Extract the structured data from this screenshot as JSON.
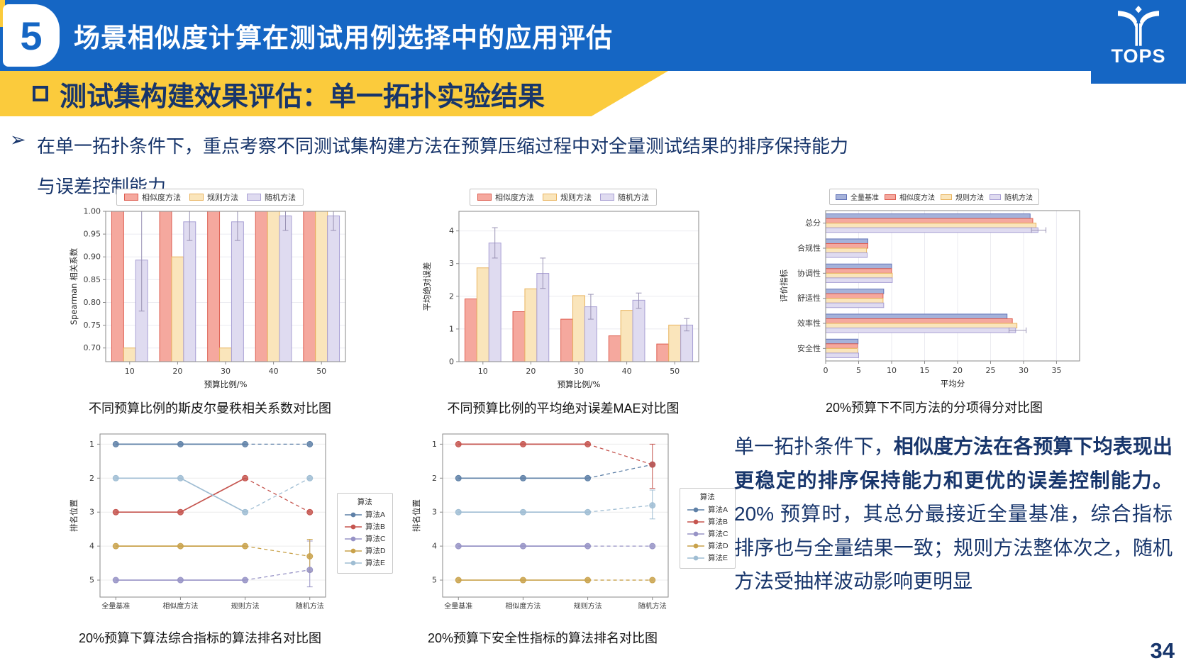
{
  "header": {
    "badge": "5",
    "title": "场景相似度计算在测试用例选择中的应用评估",
    "logo_text": "TOPS"
  },
  "subheader": {
    "text": "测试集构建效果评估：单一拓扑实验结果"
  },
  "intro": {
    "arrow": "➢",
    "line1": "在单一拓扑条件下，重点考察不同测试集构建方法在预算压缩过程中对全量测试结果的排序保持能力",
    "line2": "与误差控制能力"
  },
  "summary": {
    "prefix": "单一拓扑条件下，",
    "bold": "相似度方法在各预算下均表现出更稳定的排序保持能力和更优的误差控制能力。",
    "rest": "20% 预算时，其总分最接近全量基准，综合指标排序也与全量结果一致；规则方法整体次之，随机方法受抽样波动影响更明显"
  },
  "page_number": "34",
  "colors": {
    "header_blue": "#1566C4",
    "accent_yellow": "#FBCB3C",
    "navy_text": "#17356B",
    "bar_salmon_fill": "#F5A89E",
    "bar_salmon_edge": "#DE5E51",
    "bar_cream_fill": "#FAE5BB",
    "bar_cream_edge": "#E9B45F",
    "bar_lavender_fill": "#DFDBF0",
    "bar_lavender_edge": "#A89FD4",
    "bar_blue_fill": "#A5B2DA",
    "bar_blue_edge": "#6374B8",
    "line_algo_a": "#5E80A7",
    "line_algo_b": "#C5554F",
    "line_algo_c": "#9793C6",
    "line_algo_d": "#C9A24B",
    "line_algo_e": "#9FBDD3",
    "error_bar_gray": "#9a93b5"
  },
  "chart_data": [
    {
      "id": "spearman",
      "type": "bar",
      "caption": "不同预算比例的斯皮尔曼秩相关系数对比图",
      "xlabel": "预算比例/%",
      "ylabel": "Spearman 相关系数",
      "categories": [
        "10",
        "20",
        "30",
        "40",
        "50"
      ],
      "ylim": [
        0.67,
        1.0
      ],
      "yticks": [
        0.7,
        0.75,
        0.8,
        0.85,
        0.9,
        0.95,
        1.0
      ],
      "ydec": 2,
      "grid": true,
      "legend_position": "top",
      "series": [
        {
          "name": "相似度方法",
          "color": "salmon",
          "values": [
            1.0,
            1.0,
            1.0,
            1.0,
            1.0
          ]
        },
        {
          "name": "规则方法",
          "color": "cream",
          "values": [
            0.7,
            0.9,
            0.7,
            1.0,
            1.0
          ]
        },
        {
          "name": "随机方法",
          "color": "lavender",
          "values": [
            0.893,
            0.977,
            0.977,
            0.99,
            0.99
          ],
          "errors": [
            [
              0.781,
              1.0
            ],
            [
              0.936,
              1.0
            ],
            [
              0.936,
              1.0
            ],
            [
              0.958,
              1.0
            ],
            [
              0.958,
              1.0
            ]
          ]
        }
      ]
    },
    {
      "id": "mae",
      "type": "bar",
      "caption": "不同预算比例的平均绝对误差MAE对比图",
      "xlabel": "预算比例/%",
      "ylabel": "平均绝对误差",
      "categories": [
        "10",
        "20",
        "30",
        "40",
        "50"
      ],
      "ylim": [
        0,
        4.6
      ],
      "yticks": [
        0,
        1,
        2,
        3,
        4
      ],
      "ydec": 0,
      "grid": true,
      "legend_position": "top",
      "series": [
        {
          "name": "相似度方法",
          "color": "salmon",
          "values": [
            1.92,
            1.53,
            1.3,
            0.79,
            0.54
          ]
        },
        {
          "name": "规则方法",
          "color": "cream",
          "values": [
            2.87,
            2.23,
            2.02,
            1.57,
            1.12
          ]
        },
        {
          "name": "随机方法",
          "color": "lavender",
          "values": [
            3.63,
            2.7,
            1.68,
            1.88,
            1.12
          ],
          "errors": [
            [
              3.17,
              4.1
            ],
            [
              2.24,
              3.17
            ],
            [
              1.3,
              2.06
            ],
            [
              1.63,
              2.1
            ],
            [
              0.94,
              1.32
            ]
          ]
        }
      ]
    },
    {
      "id": "subscores",
      "type": "barh",
      "caption": "20%预算下不同方法的分项得分对比图",
      "xlabel": "平均分",
      "ylabel": "评价指标",
      "categories": [
        "总分",
        "合规性",
        "协调性",
        "舒适性",
        "效率性",
        "安全性"
      ],
      "xlim": [
        0,
        38.5
      ],
      "xticks": [
        0,
        5,
        10,
        15,
        20,
        25,
        30,
        35
      ],
      "xdec": 0,
      "grid": true,
      "legend_position": "top",
      "series": [
        {
          "name": "全量基准",
          "color": "blue",
          "values": [
            31.0,
            6.4,
            10.0,
            8.8,
            27.5,
            4.9
          ]
        },
        {
          "name": "相似度方法",
          "color": "salmon",
          "values": [
            31.4,
            6.4,
            10.0,
            8.7,
            28.3,
            4.8
          ]
        },
        {
          "name": "规则方法",
          "color": "cream",
          "values": [
            31.9,
            6.2,
            10.1,
            8.7,
            29.0,
            4.8
          ]
        },
        {
          "name": "随机方法",
          "color": "lavender",
          "values": [
            32.2,
            6.3,
            10.1,
            8.8,
            28.8,
            5.0
          ],
          "errors": [
            [
              31.2,
              33.4
            ],
            null,
            null,
            null,
            [
              27.8,
              30.4
            ],
            null
          ]
        }
      ]
    },
    {
      "id": "rank-overall",
      "type": "bump",
      "caption": "20%预算下算法综合指标的算法排名对比图",
      "ylabel": "排名位置",
      "legend_title": "算法",
      "categories": [
        "全量基准",
        "相似度方法",
        "规则方法",
        "随机方法"
      ],
      "ylim": [
        0.7,
        5.5
      ],
      "yticks": [
        1,
        2,
        3,
        4,
        5
      ],
      "series": [
        {
          "name": "算法A",
          "color": "algo_a",
          "values": [
            1,
            1,
            1,
            1
          ]
        },
        {
          "name": "算法B",
          "color": "algo_b",
          "values": [
            3,
            3,
            2,
            3
          ]
        },
        {
          "name": "算法C",
          "color": "algo_c",
          "values": [
            5,
            5,
            5,
            4.7
          ],
          "errors": [
            null,
            null,
            null,
            [
              3.85,
              5.2
            ]
          ]
        },
        {
          "name": "算法D",
          "color": "algo_d",
          "values": [
            4,
            4,
            4,
            4.3
          ],
          "errors": [
            null,
            null,
            null,
            [
              3.8,
              4.75
            ]
          ]
        },
        {
          "name": "算法E",
          "color": "algo_e",
          "values": [
            2,
            2,
            3,
            2
          ]
        }
      ]
    },
    {
      "id": "rank-safety",
      "type": "bump",
      "caption": "20%预算下安全性指标的算法排名对比图",
      "ylabel": "排名位置",
      "legend_title": "算法",
      "categories": [
        "全量基准",
        "相似度方法",
        "规则方法",
        "随机方法"
      ],
      "ylim": [
        0.7,
        5.5
      ],
      "yticks": [
        1,
        2,
        3,
        4,
        5
      ],
      "series": [
        {
          "name": "算法A",
          "color": "algo_a",
          "values": [
            2,
            2,
            2,
            1.6
          ]
        },
        {
          "name": "算法B",
          "color": "algo_b",
          "values": [
            1,
            1,
            1,
            1.6
          ],
          "errors": [
            null,
            null,
            null,
            [
              1.0,
              2.3
            ]
          ]
        },
        {
          "name": "算法C",
          "color": "algo_c",
          "values": [
            4,
            4,
            4,
            4.0
          ]
        },
        {
          "name": "算法D",
          "color": "algo_d",
          "values": [
            5,
            5,
            5,
            5.0
          ]
        },
        {
          "name": "算法E",
          "color": "algo_e",
          "values": [
            3,
            3,
            3,
            2.8
          ],
          "errors": [
            null,
            null,
            null,
            [
              2.35,
              3.2
            ]
          ]
        }
      ]
    }
  ]
}
